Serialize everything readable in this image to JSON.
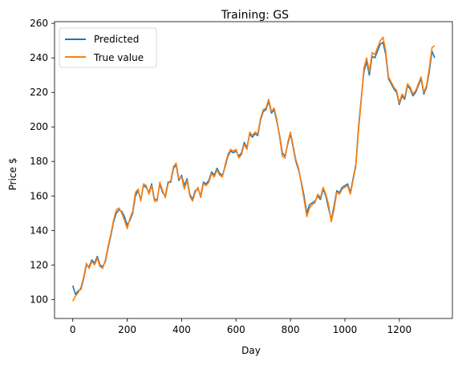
{
  "chart_data": {
    "type": "line",
    "title": "Training: GS",
    "xlabel": "Day",
    "ylabel": "Price $",
    "xlim": [
      -67,
      1395
    ],
    "ylim": [
      89,
      261
    ],
    "xticks": [
      0,
      200,
      400,
      600,
      800,
      1000,
      1200
    ],
    "yticks": [
      100,
      120,
      140,
      160,
      180,
      200,
      220,
      240,
      260
    ],
    "grid": false,
    "legend": "upper left",
    "colors": {
      "Predicted": "#1f77b4",
      "True value": "#ff7f0e"
    },
    "series": [
      {
        "name": "Predicted",
        "x": [
          0,
          10,
          20,
          30,
          40,
          50,
          60,
          70,
          80,
          90,
          100,
          110,
          120,
          130,
          140,
          150,
          160,
          170,
          180,
          190,
          200,
          210,
          220,
          230,
          240,
          250,
          260,
          270,
          280,
          290,
          300,
          310,
          320,
          330,
          340,
          350,
          360,
          370,
          380,
          390,
          400,
          410,
          420,
          430,
          440,
          450,
          460,
          470,
          480,
          490,
          500,
          510,
          520,
          530,
          540,
          550,
          560,
          570,
          580,
          590,
          600,
          610,
          620,
          630,
          640,
          650,
          660,
          670,
          680,
          690,
          700,
          710,
          720,
          730,
          740,
          750,
          760,
          770,
          780,
          790,
          800,
          810,
          820,
          830,
          840,
          850,
          860,
          870,
          880,
          890,
          900,
          910,
          920,
          930,
          940,
          950,
          960,
          970,
          980,
          990,
          1000,
          1010,
          1020,
          1030,
          1040,
          1050,
          1060,
          1070,
          1080,
          1090,
          1100,
          1110,
          1120,
          1130,
          1140,
          1150,
          1160,
          1170,
          1180,
          1190,
          1200,
          1210,
          1220,
          1230,
          1240,
          1250,
          1260,
          1270,
          1280,
          1290,
          1300,
          1310,
          1320,
          1330
        ],
        "values": [
          108,
          103,
          105,
          106,
          112,
          120,
          119,
          123,
          121,
          125,
          120,
          119,
          122,
          130,
          137,
          145,
          150,
          152,
          151,
          148,
          143,
          146,
          150,
          160,
          163,
          158,
          166,
          165,
          162,
          167,
          158,
          158,
          167,
          162,
          160,
          168,
          168,
          176,
          178,
          169,
          172,
          166,
          170,
          161,
          158,
          163,
          164,
          160,
          168,
          167,
          169,
          174,
          172,
          176,
          173,
          172,
          177,
          183,
          186,
          185,
          186,
          183,
          185,
          191,
          188,
          196,
          194,
          196,
          195,
          204,
          209,
          210,
          215,
          208,
          210,
          203,
          195,
          185,
          183,
          190,
          196,
          188,
          180,
          175,
          168,
          160,
          150,
          155,
          156,
          157,
          160,
          158,
          164,
          160,
          153,
          146,
          154,
          163,
          162,
          165,
          166,
          167,
          162,
          170,
          178,
          200,
          216,
          232,
          238,
          230,
          241,
          240,
          244,
          248,
          249,
          242,
          228,
          225,
          222,
          220,
          213,
          218,
          216,
          224,
          222,
          218,
          220,
          224,
          228,
          219,
          223,
          232,
          244,
          240
        ]
      },
      {
        "name": "True value",
        "x": [
          0,
          10,
          20,
          30,
          40,
          50,
          60,
          70,
          80,
          90,
          100,
          110,
          120,
          130,
          140,
          150,
          160,
          170,
          180,
          190,
          200,
          210,
          220,
          230,
          240,
          250,
          260,
          270,
          280,
          290,
          300,
          310,
          320,
          330,
          340,
          350,
          360,
          370,
          380,
          390,
          400,
          410,
          420,
          430,
          440,
          450,
          460,
          470,
          480,
          490,
          500,
          510,
          520,
          530,
          540,
          550,
          560,
          570,
          580,
          590,
          600,
          610,
          620,
          630,
          640,
          650,
          660,
          670,
          680,
          690,
          700,
          710,
          720,
          730,
          740,
          750,
          760,
          770,
          780,
          790,
          800,
          810,
          820,
          830,
          840,
          850,
          860,
          870,
          880,
          890,
          900,
          910,
          920,
          930,
          940,
          950,
          960,
          970,
          980,
          990,
          1000,
          1010,
          1020,
          1030,
          1040,
          1050,
          1060,
          1070,
          1080,
          1090,
          1100,
          1110,
          1120,
          1130,
          1140,
          1150,
          1160,
          1170,
          1180,
          1190,
          1200,
          1210,
          1220,
          1230,
          1240,
          1250,
          1260,
          1270,
          1280,
          1290,
          1300,
          1310,
          1320,
          1330
        ],
        "values": [
          99,
          102,
          104,
          107,
          113,
          121,
          118,
          122,
          120,
          124,
          119,
          118,
          123,
          131,
          138,
          146,
          152,
          153,
          150,
          146,
          141,
          147,
          151,
          162,
          164,
          157,
          167,
          166,
          161,
          166,
          157,
          157,
          168,
          163,
          159,
          167,
          169,
          177,
          179,
          170,
          171,
          164,
          169,
          160,
          157,
          162,
          165,
          159,
          167,
          166,
          168,
          173,
          171,
          175,
          172,
          171,
          178,
          184,
          187,
          186,
          187,
          182,
          184,
          190,
          187,
          197,
          195,
          197,
          196,
          205,
          210,
          211,
          216,
          209,
          211,
          204,
          194,
          183,
          182,
          191,
          197,
          189,
          181,
          176,
          167,
          158,
          148,
          153,
          155,
          156,
          161,
          159,
          165,
          161,
          155,
          145,
          152,
          162,
          161,
          164,
          165,
          166,
          161,
          169,
          177,
          198,
          215,
          234,
          240,
          232,
          243,
          242,
          246,
          250,
          252,
          244,
          229,
          226,
          223,
          221,
          214,
          219,
          217,
          225,
          223,
          219,
          221,
          225,
          229,
          220,
          224,
          234,
          246,
          247
        ]
      }
    ]
  }
}
